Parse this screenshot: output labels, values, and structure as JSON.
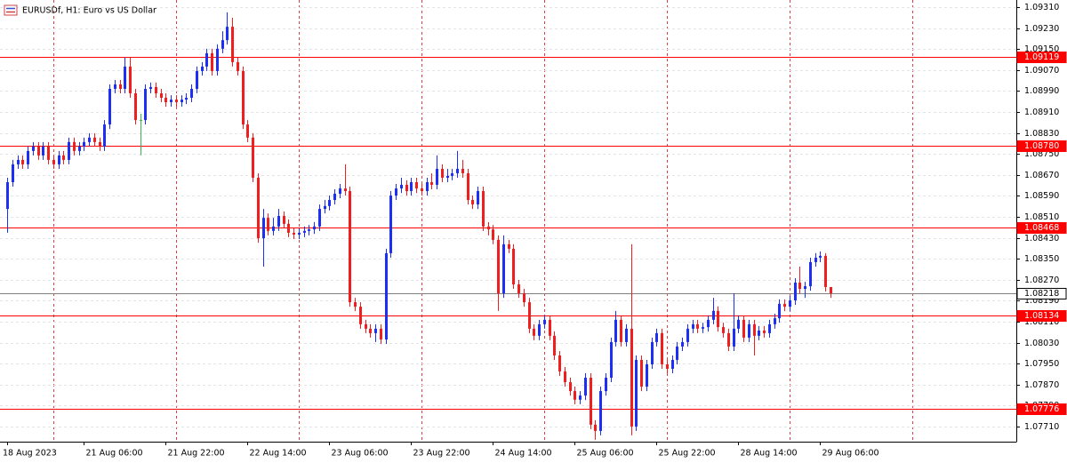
{
  "chart_data": {
    "type": "candlestick",
    "title": "EURUSDf, H1:  Euro vs US Dollar",
    "categories": [
      "18 Aug 2023",
      null,
      null,
      null,
      null,
      null,
      null,
      null,
      null,
      null,
      null,
      null,
      null,
      null,
      null,
      "21 Aug 06:00",
      null,
      null,
      null,
      null,
      null,
      null,
      null,
      null,
      null,
      null,
      null,
      null,
      null,
      null,
      null,
      "21 Aug 22:00",
      null,
      null,
      null,
      null,
      null,
      null,
      null,
      null,
      null,
      null,
      null,
      null,
      null,
      null,
      null,
      "22 Aug 14:00",
      null,
      null,
      null,
      null,
      null,
      null,
      null,
      null,
      null,
      null,
      null,
      null,
      null,
      null,
      null,
      "23 Aug 06:00",
      null,
      null,
      null,
      null,
      null,
      null,
      null,
      null,
      null,
      null,
      null,
      null,
      null,
      null,
      null,
      "23 Aug 22:00",
      null,
      null,
      null,
      null,
      null,
      null,
      null,
      null,
      null,
      null,
      null,
      null,
      null,
      null,
      null,
      "24 Aug 14:00",
      null,
      null,
      null,
      null,
      null,
      null,
      null,
      null,
      null,
      null,
      null,
      null,
      null,
      null,
      null,
      "25 Aug 06:00",
      null,
      null,
      null,
      null,
      null,
      null,
      null,
      null,
      null,
      null,
      null,
      null,
      null,
      null,
      null,
      "25 Aug 22:00",
      null,
      null,
      null,
      null,
      null,
      null,
      null,
      null,
      null,
      null,
      null,
      null,
      null,
      null,
      null,
      "28 Aug 14:00",
      null,
      null,
      null,
      null,
      null,
      null,
      null,
      null,
      null,
      null,
      null,
      null,
      null,
      null,
      null,
      "29 Aug 06:00",
      null,
      null
    ],
    "ohlc": [
      [
        1.0854,
        1.08659,
        1.08449,
        1.08642
      ],
      [
        1.08642,
        1.08727,
        1.08625,
        1.0871
      ],
      [
        1.0871,
        1.08744,
        1.08693,
        1.08727
      ],
      [
        1.08727,
        1.08744,
        1.08693,
        1.0871
      ],
      [
        1.0871,
        1.08778,
        1.08693,
        1.08761
      ],
      [
        1.08761,
        1.08795,
        1.08744,
        1.08778
      ],
      [
        1.08778,
        1.08795,
        1.08727,
        1.08744
      ],
      [
        1.08744,
        1.08795,
        1.08727,
        1.08778
      ],
      [
        1.08778,
        1.08795,
        1.0871,
        1.08727
      ],
      [
        1.08727,
        1.08744,
        1.08693,
        1.0871
      ],
      [
        1.0871,
        1.08761,
        1.08693,
        1.08744
      ],
      [
        1.08744,
        1.08761,
        1.0871,
        1.08727
      ],
      [
        1.08727,
        1.08812,
        1.0871,
        1.08795
      ],
      [
        1.08795,
        1.08812,
        1.08744,
        1.08761
      ],
      [
        1.08761,
        1.08795,
        1.08744,
        1.08778
      ],
      [
        1.08778,
        1.08812,
        1.08761,
        1.08795
      ],
      [
        1.08795,
        1.08829,
        1.08778,
        1.08812
      ],
      [
        1.08812,
        1.08829,
        1.08778,
        1.08795
      ],
      [
        1.08795,
        1.08812,
        1.08761,
        1.08778
      ],
      [
        1.08778,
        1.08879,
        1.08761,
        1.08862
      ],
      [
        1.08862,
        1.09015,
        1.08845,
        1.08998
      ],
      [
        1.08998,
        1.09032,
        1.08981,
        1.09015
      ],
      [
        1.09015,
        1.09032,
        1.08981,
        1.08998
      ],
      [
        1.08998,
        1.09117,
        1.08981,
        1.09083
      ],
      [
        1.09083,
        1.09117,
        1.08964,
        1.08981
      ],
      [
        1.08981,
        1.08998,
        1.08862,
        1.08879
      ],
      [
        1.08879,
        1.08903,
        1.08744,
        1.08879
      ],
      [
        1.08879,
        1.09015,
        1.08862,
        1.08998
      ],
      [
        1.08998,
        1.09022,
        1.08981,
        1.09005
      ],
      [
        1.09005,
        1.09022,
        1.08964,
        1.08981
      ],
      [
        1.08981,
        1.08998,
        1.08947,
        1.08964
      ],
      [
        1.08964,
        1.08981,
        1.0893,
        1.08947
      ],
      [
        1.08947,
        1.08974,
        1.0893,
        1.08957
      ],
      [
        1.08957,
        1.08974,
        1.0893,
        1.08947
      ],
      [
        1.08947,
        1.08974,
        1.0893,
        1.08957
      ],
      [
        1.08957,
        1.08981,
        1.0894,
        1.08964
      ],
      [
        1.08964,
        1.09015,
        1.08947,
        1.08998
      ],
      [
        1.08998,
        1.09083,
        1.08981,
        1.09066
      ],
      [
        1.09066,
        1.091,
        1.09049,
        1.09083
      ],
      [
        1.09083,
        1.09151,
        1.09066,
        1.09134
      ],
      [
        1.09134,
        1.09151,
        1.09049,
        1.09066
      ],
      [
        1.09066,
        1.09168,
        1.09049,
        1.09151
      ],
      [
        1.09151,
        1.09218,
        1.09134,
        1.09184
      ],
      [
        1.09184,
        1.0929,
        1.09167,
        1.09235
      ],
      [
        1.09235,
        1.09269,
        1.09083,
        1.091
      ],
      [
        1.091,
        1.09117,
        1.09049,
        1.09066
      ],
      [
        1.09066,
        1.09083,
        1.08845,
        1.08862
      ],
      [
        1.08862,
        1.08879,
        1.08795,
        1.08812
      ],
      [
        1.08812,
        1.08829,
        1.08642,
        1.08659
      ],
      [
        1.08659,
        1.08676,
        1.08411,
        1.08428
      ],
      [
        1.08428,
        1.0854,
        1.0832,
        1.08506
      ],
      [
        1.08506,
        1.08523,
        1.08439,
        1.08456
      ],
      [
        1.08456,
        1.08506,
        1.08439,
        1.08473
      ],
      [
        1.08473,
        1.0854,
        1.08456,
        1.08513
      ],
      [
        1.08513,
        1.0853,
        1.08466,
        1.08483
      ],
      [
        1.08483,
        1.085,
        1.08432,
        1.08449
      ],
      [
        1.08449,
        1.08466,
        1.08425,
        1.08442
      ],
      [
        1.08442,
        1.08466,
        1.08425,
        1.08449
      ],
      [
        1.08449,
        1.08473,
        1.08432,
        1.08456
      ],
      [
        1.08456,
        1.08479,
        1.08439,
        1.08462
      ],
      [
        1.08462,
        1.0849,
        1.08445,
        1.08473
      ],
      [
        1.08473,
        1.08557,
        1.08456,
        1.0854
      ],
      [
        1.0854,
        1.08574,
        1.08523,
        1.08551
      ],
      [
        1.08551,
        1.08591,
        1.08534,
        1.08574
      ],
      [
        1.08574,
        1.08615,
        1.08557,
        1.08598
      ],
      [
        1.08598,
        1.08635,
        1.08581,
        1.08618
      ],
      [
        1.08618,
        1.0871,
        1.08591,
        1.08608
      ],
      [
        1.08608,
        1.08625,
        1.08167,
        1.08184
      ],
      [
        1.08184,
        1.08201,
        1.0815,
        1.08167
      ],
      [
        1.08167,
        1.08184,
        1.08083,
        1.081
      ],
      [
        1.081,
        1.08117,
        1.08066,
        1.08083
      ],
      [
        1.08083,
        1.081,
        1.08049,
        1.08066
      ],
      [
        1.08066,
        1.081,
        1.08032,
        1.08083
      ],
      [
        1.08083,
        1.081,
        1.08025,
        1.08042
      ],
      [
        1.08042,
        1.08388,
        1.08025,
        1.08371
      ],
      [
        1.08371,
        1.08608,
        1.08354,
        1.08591
      ],
      [
        1.08591,
        1.08635,
        1.08574,
        1.08618
      ],
      [
        1.08618,
        1.08659,
        1.08601,
        1.08632
      ],
      [
        1.08632,
        1.08649,
        1.08591,
        1.08608
      ],
      [
        1.08608,
        1.08659,
        1.08591,
        1.08642
      ],
      [
        1.08642,
        1.08659,
        1.08601,
        1.08618
      ],
      [
        1.08618,
        1.08635,
        1.08591,
        1.08608
      ],
      [
        1.08608,
        1.08659,
        1.08591,
        1.08642
      ],
      [
        1.08642,
        1.08676,
        1.08615,
        1.08632
      ],
      [
        1.08632,
        1.08744,
        1.08615,
        1.08693
      ],
      [
        1.08693,
        1.0871,
        1.08642,
        1.08659
      ],
      [
        1.08659,
        1.08693,
        1.08642,
        1.08666
      ],
      [
        1.08666,
        1.08693,
        1.08649,
        1.08676
      ],
      [
        1.08676,
        1.08761,
        1.08659,
        1.08693
      ],
      [
        1.08693,
        1.08727,
        1.08659,
        1.08676
      ],
      [
        1.08676,
        1.08693,
        1.08557,
        1.08574
      ],
      [
        1.08574,
        1.08591,
        1.0854,
        1.08557
      ],
      [
        1.08557,
        1.08625,
        1.0854,
        1.08608
      ],
      [
        1.08608,
        1.08625,
        1.08456,
        1.08473
      ],
      [
        1.08473,
        1.0849,
        1.08439,
        1.08462
      ],
      [
        1.08462,
        1.08479,
        1.08405,
        1.08422
      ],
      [
        1.08422,
        1.08439,
        1.08151,
        1.08218
      ],
      [
        1.08218,
        1.08439,
        1.08201,
        1.08405
      ],
      [
        1.08405,
        1.08422,
        1.08371,
        1.08388
      ],
      [
        1.08388,
        1.08405,
        1.08235,
        1.08252
      ],
      [
        1.08252,
        1.08269,
        1.08201,
        1.08218
      ],
      [
        1.08218,
        1.08235,
        1.08167,
        1.08184
      ],
      [
        1.08184,
        1.08201,
        1.08066,
        1.08083
      ],
      [
        1.08083,
        1.081,
        1.08039,
        1.08056
      ],
      [
        1.08056,
        1.08117,
        1.08039,
        1.081
      ],
      [
        1.081,
        1.08134,
        1.08083,
        1.08117
      ],
      [
        1.08117,
        1.08134,
        1.08039,
        1.08056
      ],
      [
        1.08056,
        1.08073,
        1.07964,
        1.07981
      ],
      [
        1.07981,
        1.07998,
        1.07903,
        1.0792
      ],
      [
        1.0792,
        1.07937,
        1.07862,
        1.07879
      ],
      [
        1.07879,
        1.07896,
        1.07828,
        1.07845
      ],
      [
        1.07845,
        1.07862,
        1.07795,
        1.07812
      ],
      [
        1.07812,
        1.07845,
        1.07795,
        1.07828
      ],
      [
        1.07828,
        1.07913,
        1.07811,
        1.07896
      ],
      [
        1.07896,
        1.07913,
        1.077,
        1.07717
      ],
      [
        1.07717,
        1.07734,
        1.07659,
        1.07693
      ],
      [
        1.07693,
        1.07862,
        1.07676,
        1.07845
      ],
      [
        1.07845,
        1.07913,
        1.07828,
        1.07896
      ],
      [
        1.07896,
        1.08049,
        1.07879,
        1.08032
      ],
      [
        1.08032,
        1.08151,
        1.08015,
        1.08117
      ],
      [
        1.08117,
        1.08134,
        1.08015,
        1.08032
      ],
      [
        1.08032,
        1.081,
        1.08015,
        1.08083
      ],
      [
        1.08083,
        1.08405,
        1.07676,
        1.0771
      ],
      [
        1.0771,
        1.07981,
        1.07693,
        1.07964
      ],
      [
        1.07964,
        1.07981,
        1.07845,
        1.07862
      ],
      [
        1.07862,
        1.07964,
        1.07845,
        1.07947
      ],
      [
        1.07947,
        1.08049,
        1.0793,
        1.08032
      ],
      [
        1.08032,
        1.08083,
        1.08015,
        1.08066
      ],
      [
        1.08066,
        1.08083,
        1.0793,
        1.07947
      ],
      [
        1.07947,
        1.07964,
        1.07913,
        1.0793
      ],
      [
        1.0793,
        1.07981,
        1.07913,
        1.07964
      ],
      [
        1.07964,
        1.08032,
        1.07947,
        1.08015
      ],
      [
        1.08015,
        1.08049,
        1.07998,
        1.08032
      ],
      [
        1.08032,
        1.081,
        1.08015,
        1.08083
      ],
      [
        1.08083,
        1.08117,
        1.08066,
        1.081
      ],
      [
        1.081,
        1.08117,
        1.08066,
        1.08083
      ],
      [
        1.08083,
        1.08106,
        1.08066,
        1.08089
      ],
      [
        1.08089,
        1.08134,
        1.08072,
        1.08117
      ],
      [
        1.08117,
        1.08201,
        1.081,
        1.08151
      ],
      [
        1.08151,
        1.08168,
        1.08072,
        1.08089
      ],
      [
        1.08089,
        1.08106,
        1.08049,
        1.08066
      ],
      [
        1.08066,
        1.08083,
        1.07998,
        1.08015
      ],
      [
        1.08015,
        1.08218,
        1.07998,
        1.08083
      ],
      [
        1.08083,
        1.08134,
        1.08066,
        1.08117
      ],
      [
        1.08117,
        1.08134,
        1.08032,
        1.08049
      ],
      [
        1.08049,
        1.08117,
        1.08032,
        1.081
      ],
      [
        1.081,
        1.08117,
        1.07981,
        1.08056
      ],
      [
        1.08056,
        1.08093,
        1.08039,
        1.08076
      ],
      [
        1.08076,
        1.08093,
        1.08049,
        1.08066
      ],
      [
        1.08066,
        1.08117,
        1.08049,
        1.081
      ],
      [
        1.081,
        1.0814,
        1.08083,
        1.08123
      ],
      [
        1.08123,
        1.08195,
        1.08106,
        1.08178
      ],
      [
        1.08178,
        1.08195,
        1.0815,
        1.08167
      ],
      [
        1.08167,
        1.08208,
        1.0815,
        1.08191
      ],
      [
        1.08191,
        1.08276,
        1.08174,
        1.08259
      ],
      [
        1.08259,
        1.0832,
        1.08218,
        1.08235
      ],
      [
        1.08235,
        1.08262,
        1.08201,
        1.08245
      ],
      [
        1.08245,
        1.08354,
        1.08228,
        1.08337
      ],
      [
        1.08337,
        1.08371,
        1.0832,
        1.08354
      ],
      [
        1.08354,
        1.08378,
        1.08337,
        1.08361
      ],
      [
        1.08361,
        1.08371,
        1.08225,
        1.08242
      ],
      [
        1.08242,
        1.08242,
        1.08201,
        1.08218
      ]
    ],
    "up_color": "#1e2ff5",
    "down_color": "#f01e1e",
    "doji_color": "#3cb44b",
    "ylim": [
      1.07652,
      1.09337
    ],
    "yticks": [
      {
        "value": 1.0931,
        "label": "1.09310"
      },
      {
        "value": 1.0923,
        "label": "1.09230"
      },
      {
        "value": 1.0915,
        "label": "1.09150"
      },
      {
        "value": 1.0907,
        "label": "1.09070"
      },
      {
        "value": 1.0899,
        "label": "1.08990"
      },
      {
        "value": 1.0891,
        "label": "1.08910"
      },
      {
        "value": 1.0883,
        "label": "1.08830"
      },
      {
        "value": 1.0875,
        "label": "1.08750"
      },
      {
        "value": 1.0867,
        "label": "1.08670"
      },
      {
        "value": 1.0859,
        "label": "1.08590"
      },
      {
        "value": 1.0851,
        "label": "1.08510"
      },
      {
        "value": 1.0843,
        "label": "1.08430"
      },
      {
        "value": 1.0835,
        "label": "1.08350"
      },
      {
        "value": 1.0827,
        "label": "1.08270"
      },
      {
        "value": 1.0819,
        "label": "1.08190"
      },
      {
        "value": 1.0811,
        "label": "1.08110"
      },
      {
        "value": 1.0803,
        "label": "1.08030"
      },
      {
        "value": 1.0795,
        "label": "1.07950"
      },
      {
        "value": 1.0787,
        "label": "1.07870"
      },
      {
        "value": 1.0779,
        "label": "1.07790"
      },
      {
        "value": 1.0771,
        "label": "1.07710"
      }
    ],
    "grid": true,
    "levels": [
      1.09119,
      {
        "value": 1.0878,
        "label": "1.08780"
      },
      1.08468,
      1.08134,
      1.07776
    ],
    "level_color": "#ff0000",
    "current_price": 1.08218,
    "current_price_color": "#808080"
  }
}
